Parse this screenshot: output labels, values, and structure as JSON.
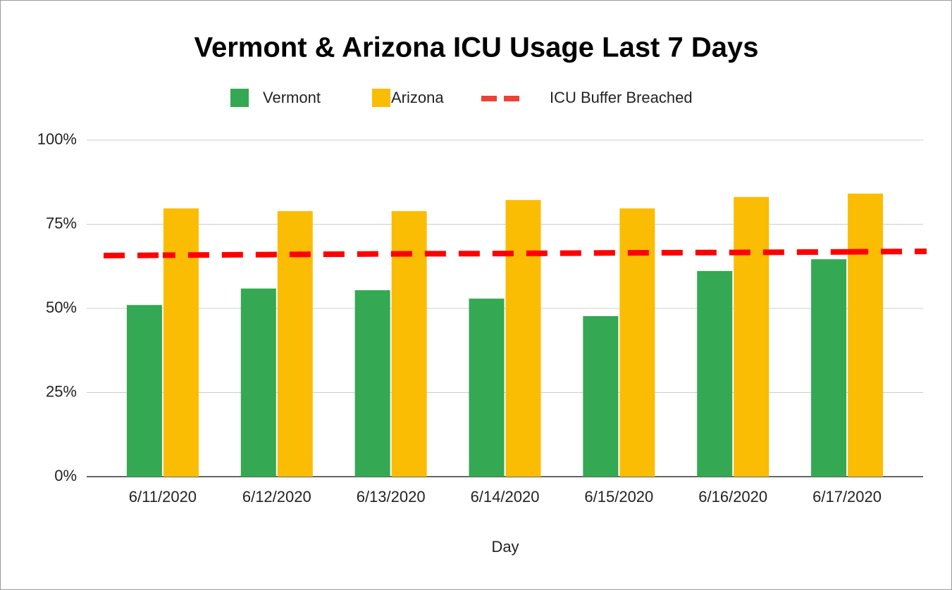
{
  "chart_data": {
    "type": "bar",
    "title": "Vermont & Arizona ICU Usage Last 7 Days",
    "xlabel": "Day",
    "categories": [
      "6/11/2020",
      "6/12/2020",
      "6/13/2020",
      "6/14/2020",
      "6/15/2020",
      "6/16/2020",
      "6/17/2020"
    ],
    "series": [
      {
        "name": "Vermont",
        "type": "bar",
        "color": "#34a853",
        "values": [
          51.0,
          55.9,
          55.4,
          52.9,
          47.7,
          61.1,
          64.6
        ]
      },
      {
        "name": "Arizona",
        "type": "bar",
        "color": "#fbbc04",
        "values": [
          79.7,
          78.9,
          78.9,
          82.2,
          79.7,
          83.1,
          84.1
        ]
      },
      {
        "name": "ICU Buffer Breached",
        "type": "line",
        "dashed": true,
        "color": "#ff0000",
        "values": [
          65.8,
          66.0,
          66.2,
          66.3,
          66.5,
          66.6,
          66.8
        ]
      }
    ],
    "ylim": [
      0,
      100
    ],
    "yticks": [
      {
        "value": 0,
        "label": "0%"
      },
      {
        "value": 25,
        "label": "25%"
      },
      {
        "value": 50,
        "label": "50%"
      },
      {
        "value": 75,
        "label": "75%"
      },
      {
        "value": 100,
        "label": "100%"
      }
    ],
    "grid": true,
    "legend": "top"
  }
}
